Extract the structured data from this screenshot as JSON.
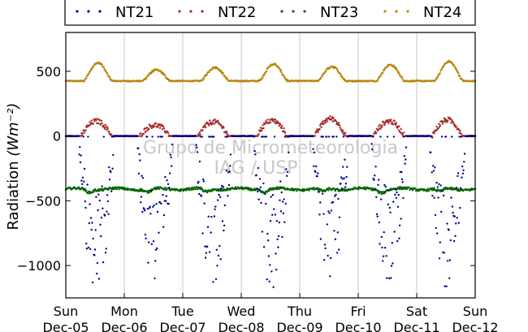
{
  "chart_data": {
    "type": "scatter",
    "title": "",
    "xlabel": "",
    "ylabel": "Radiation",
    "ylabel_unit": "(Wm⁻²)",
    "ylim": [
      -1250,
      800
    ],
    "yticks": [
      {
        "value": 500,
        "label": "500"
      },
      {
        "value": 0,
        "label": "0"
      },
      {
        "value": -500,
        "label": "−500"
      },
      {
        "value": -1000,
        "label": "−1000"
      }
    ],
    "xlim_days": [
      0,
      7
    ],
    "xticks": [
      {
        "day": 0,
        "weekday": "Sun",
        "date": "Dec-05"
      },
      {
        "day": 1,
        "weekday": "Mon",
        "date": "Dec-06"
      },
      {
        "day": 2,
        "weekday": "Tue",
        "date": "Dec-07"
      },
      {
        "day": 3,
        "weekday": "Wed",
        "date": "Dec-08"
      },
      {
        "day": 4,
        "weekday": "Thu",
        "date": "Dec-09"
      },
      {
        "day": 5,
        "weekday": "Fri",
        "date": "Dec-10"
      },
      {
        "day": 6,
        "weekday": "Sat",
        "date": "Dec-11"
      },
      {
        "day": 7,
        "weekday": "Sun",
        "date": "Dec-12"
      }
    ],
    "vertical_grid": true,
    "legend_position": "top",
    "watermark": [
      "Grupo de Micrometeorologia",
      "IAG / USP"
    ],
    "series": [
      {
        "name": "NT21",
        "color": "#00008b",
        "marker": "dot",
        "daily_min": [
          -1180,
          -1180,
          -1160,
          -1190,
          -1180,
          -1130,
          -1200
        ],
        "night_value": 0
      },
      {
        "name": "NT22",
        "color": "#a52a2a",
        "marker": "dot",
        "daily_peak": [
          115,
          85,
          110,
          120,
          135,
          115,
          125
        ],
        "night_value": 0
      },
      {
        "name": "NT23",
        "color": "#006400",
        "marker": "dot",
        "mean": -410,
        "range": [
          -460,
          -360
        ]
      },
      {
        "name": "NT24",
        "color": "#b8860b",
        "marker": "dot",
        "daily_peak": [
          565,
          510,
          530,
          555,
          535,
          550,
          575
        ],
        "baseline": 425
      }
    ]
  }
}
